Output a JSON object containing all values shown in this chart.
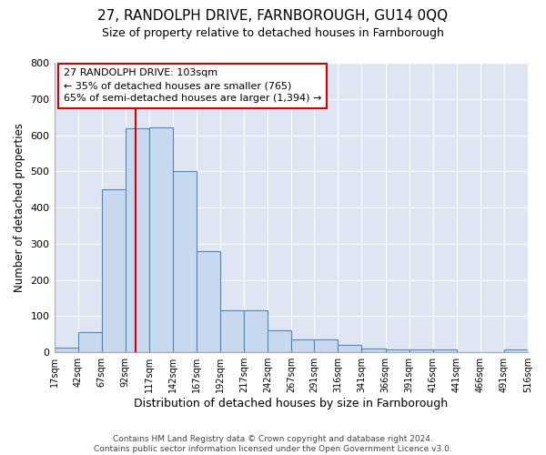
{
  "title1": "27, RANDOLPH DRIVE, FARNBOROUGH, GU14 0QQ",
  "title2": "Size of property relative to detached houses in Farnborough",
  "xlabel": "Distribution of detached houses by size in Farnborough",
  "ylabel": "Number of detached properties",
  "footer1": "Contains HM Land Registry data © Crown copyright and database right 2024.",
  "footer2": "Contains public sector information licensed under the Open Government Licence v3.0.",
  "annotation_title": "27 RANDOLPH DRIVE: 103sqm",
  "annotation_line1": "← 35% of detached houses are smaller (765)",
  "annotation_line2": "65% of semi-detached houses are larger (1,394) →",
  "property_size": 103,
  "bar_color": "#c8d9ee",
  "bar_edge_color": "#4f86c0",
  "vline_color": "#cc0000",
  "annotation_box_edge_color": "#cc0000",
  "bg_color": "#dde6f2",
  "grid_color": "#ffffff",
  "bin_edges": [
    17,
    42,
    67,
    92,
    117,
    142,
    167,
    192,
    217,
    242,
    267,
    291,
    316,
    341,
    366,
    391,
    416,
    441,
    466,
    491,
    516
  ],
  "bin_counts": [
    13,
    57,
    450,
    620,
    622,
    500,
    280,
    115,
    115,
    62,
    35,
    35,
    20,
    10,
    8,
    8,
    8,
    0,
    0,
    8
  ],
  "ylim": [
    0,
    800
  ],
  "yticks": [
    0,
    100,
    200,
    300,
    400,
    500,
    600,
    700,
    800
  ],
  "tick_labels": [
    "17sqm",
    "42sqm",
    "67sqm",
    "92sqm",
    "117sqm",
    "142sqm",
    "167sqm",
    "192sqm",
    "217sqm",
    "242sqm",
    "267sqm",
    "291sqm",
    "316sqm",
    "341sqm",
    "366sqm",
    "391sqm",
    "416sqm",
    "441sqm",
    "466sqm",
    "491sqm",
    "516sqm"
  ]
}
